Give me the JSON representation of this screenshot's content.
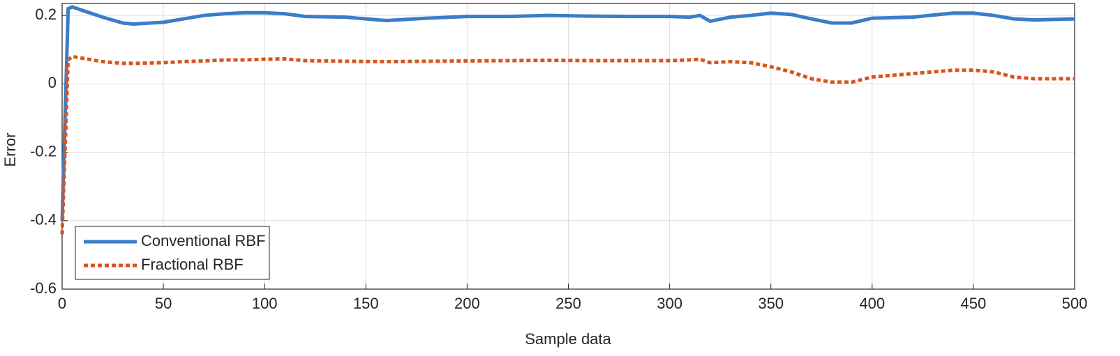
{
  "chart_data": {
    "type": "line",
    "x_label": "Sample data",
    "y_label": "Error",
    "x": [
      0,
      3,
      5,
      10,
      20,
      30,
      35,
      50,
      60,
      70,
      80,
      90,
      100,
      110,
      120,
      140,
      160,
      180,
      200,
      220,
      240,
      260,
      280,
      300,
      310,
      315,
      320,
      330,
      340,
      350,
      360,
      370,
      380,
      390,
      400,
      420,
      440,
      450,
      460,
      470,
      480,
      500
    ],
    "series": [
      {
        "name": "Conventional RBF",
        "color": "#3a7dc9",
        "style": "solid",
        "values": [
          -0.4,
          0.22,
          0.225,
          0.215,
          0.195,
          0.178,
          0.175,
          0.18,
          0.19,
          0.2,
          0.205,
          0.208,
          0.208,
          0.205,
          0.197,
          0.195,
          0.185,
          0.192,
          0.197,
          0.197,
          0.2,
          0.198,
          0.197,
          0.197,
          0.195,
          0.2,
          0.183,
          0.195,
          0.2,
          0.207,
          0.203,
          0.19,
          0.178,
          0.178,
          0.192,
          0.195,
          0.207,
          0.207,
          0.2,
          0.19,
          0.187,
          0.19
        ]
      },
      {
        "name": "Fractional RBF",
        "color": "#d9541f",
        "style": "dotted",
        "values": [
          -0.44,
          0.07,
          0.08,
          0.075,
          0.065,
          0.06,
          0.06,
          0.062,
          0.065,
          0.067,
          0.07,
          0.07,
          0.072,
          0.073,
          0.068,
          0.066,
          0.065,
          0.066,
          0.067,
          0.068,
          0.069,
          0.068,
          0.068,
          0.068,
          0.07,
          0.072,
          0.062,
          0.065,
          0.062,
          0.05,
          0.035,
          0.015,
          0.005,
          0.005,
          0.02,
          0.03,
          0.04,
          0.04,
          0.035,
          0.02,
          0.015,
          0.015
        ]
      }
    ],
    "xlim": [
      0,
      500
    ],
    "xticks": [
      0,
      50,
      100,
      150,
      200,
      250,
      300,
      350,
      400,
      450,
      500
    ],
    "ylim": [
      -0.6,
      0.235
    ],
    "yticks": [
      -0.6,
      -0.4,
      -0.2,
      0,
      0.2
    ],
    "grid": true,
    "legend": "lower-left"
  }
}
